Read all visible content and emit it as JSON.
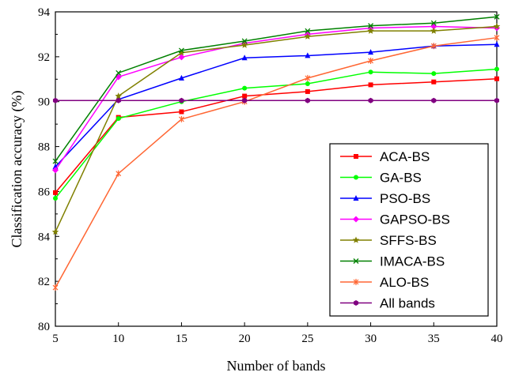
{
  "chart_data": {
    "type": "line",
    "title": "",
    "xlabel": "Number of bands",
    "ylabel": "Classification accuracy (%)",
    "x": [
      5,
      10,
      15,
      20,
      25,
      30,
      35,
      40
    ],
    "xlim": [
      5,
      40
    ],
    "ylim": [
      80,
      94
    ],
    "xticks": [
      5,
      10,
      15,
      20,
      25,
      30,
      35,
      40
    ],
    "yticks": [
      80,
      82,
      84,
      86,
      88,
      90,
      92,
      94
    ],
    "grid": false,
    "legend_position": "bottom-right",
    "series": [
      {
        "name": "ACA-BS",
        "color": "#ff0000",
        "marker": "square",
        "values": [
          85.95,
          89.3,
          89.55,
          90.25,
          90.45,
          90.75,
          90.88,
          91.02
        ]
      },
      {
        "name": "GA-BS",
        "color": "#00ff00",
        "marker": "circle",
        "values": [
          85.7,
          89.25,
          90.0,
          90.6,
          90.8,
          91.32,
          91.25,
          91.45
        ]
      },
      {
        "name": "PSO-BS",
        "color": "#0000ff",
        "marker": "triangle",
        "values": [
          87.1,
          90.1,
          91.05,
          91.95,
          92.05,
          92.2,
          92.48,
          92.55
        ]
      },
      {
        "name": "GAPSO-BS",
        "color": "#ff00ff",
        "marker": "diamond",
        "values": [
          86.95,
          91.1,
          91.98,
          92.6,
          93.0,
          93.28,
          93.35,
          93.28
        ]
      },
      {
        "name": "SFFS-BS",
        "color": "#808000",
        "marker": "star",
        "values": [
          84.2,
          90.25,
          92.18,
          92.52,
          92.9,
          93.15,
          93.15,
          93.35
        ]
      },
      {
        "name": "IMACA-BS",
        "color": "#008000",
        "marker": "x",
        "values": [
          87.35,
          91.28,
          92.28,
          92.7,
          93.15,
          93.38,
          93.5,
          93.78
        ]
      },
      {
        "name": "ALO-BS",
        "color": "#ff6633",
        "marker": "asterisk",
        "values": [
          81.72,
          86.8,
          89.22,
          90.0,
          91.05,
          91.82,
          92.48,
          92.85
        ]
      },
      {
        "name": "All bands",
        "color": "#800080",
        "marker": "hexagon",
        "values": [
          90.05,
          90.05,
          90.05,
          90.05,
          90.05,
          90.05,
          90.05,
          90.05
        ]
      }
    ]
  }
}
